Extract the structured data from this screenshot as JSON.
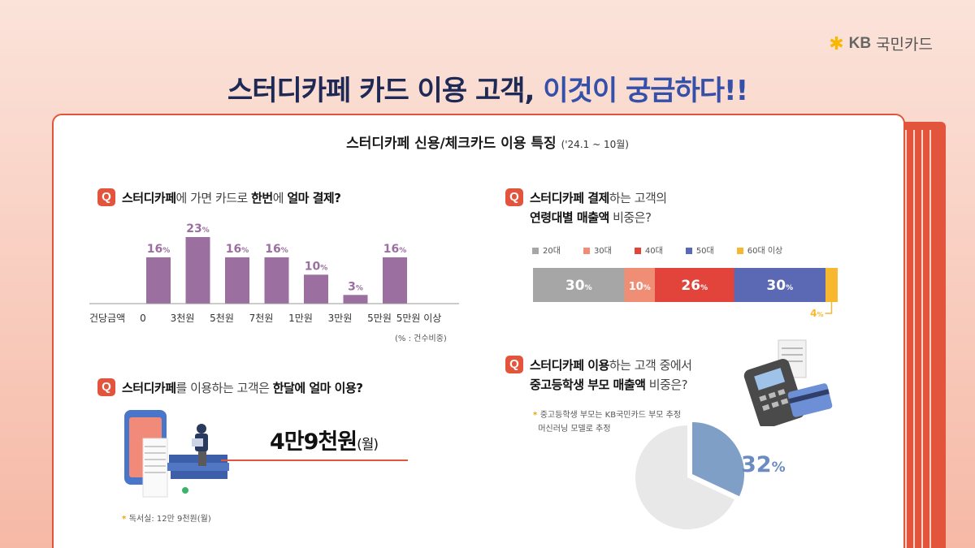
{
  "brand": {
    "kb": "KB",
    "name": "국민카드"
  },
  "title": {
    "part1": "스터디카페 카드 이용 고객, ",
    "part2": "이것이 궁금하다!!"
  },
  "subtitle": {
    "main": "스터디카페 신용/체크카드 이용 특징",
    "period": "('24.1 ~ 10월)"
  },
  "q1": {
    "badge": "Q",
    "a": "스터디카페",
    "b": "에 가면 카드로 ",
    "c": "한번",
    "d": "에 ",
    "e": "얼마 결제?",
    "note": "(% : 건수비중)"
  },
  "q2": {
    "badge": "Q",
    "a": "스터디카페",
    "b": "를 이용하는 고객은 ",
    "c": "한달에 얼마 이용?",
    "amount": "4만9천원",
    "amount_unit": "(월)",
    "note": "독서실: 12만 9천원(월)"
  },
  "q3": {
    "badge": "Q",
    "a": "스터디카페 결제",
    "b": "하는 고객의",
    "c": "연령대별 매출액",
    "d": " 비중은?"
  },
  "q4": {
    "badge": "Q",
    "a": "스터디카페 이용",
    "b": "하는 고객 중에서",
    "c": "중고등학생 부모 매출액",
    "d": " 비중은?",
    "note1": "중고등학생 부모는 KB국민카드 부모 추정",
    "note2": "머신러닝 모델로 추정"
  },
  "colors": {
    "accent": "#e2553c",
    "bar": "#9b6fa0",
    "age20": "#a6a6a6",
    "age30": "#ef8d75",
    "age40": "#e2443c",
    "age50": "#5b69b4",
    "age60": "#f7b72e",
    "pie": "#7f9fc6",
    "pie_rest": "#e8e8e8"
  },
  "chart_data": [
    {
      "type": "bar",
      "xlabel": "건당금액",
      "tick_labels": [
        "0",
        "3천원",
        "5천원",
        "7천원",
        "1만원",
        "3만원",
        "5만원",
        "5만원 이상"
      ],
      "values": [
        16,
        23,
        16,
        16,
        10,
        3,
        16
      ],
      "unit": "%"
    },
    {
      "type": "bar",
      "orientation": "horizontal-stacked",
      "series": [
        {
          "name": "20대",
          "value": 30
        },
        {
          "name": "30대",
          "value": 10
        },
        {
          "name": "40대",
          "value": 26
        },
        {
          "name": "50대",
          "value": 30
        },
        {
          "name": "60대 이상",
          "value": 4
        }
      ],
      "unit": "%"
    },
    {
      "type": "pie",
      "slices": [
        {
          "value": 32
        },
        {
          "value": 68
        }
      ],
      "highlight_label": "32",
      "unit": "%"
    }
  ]
}
